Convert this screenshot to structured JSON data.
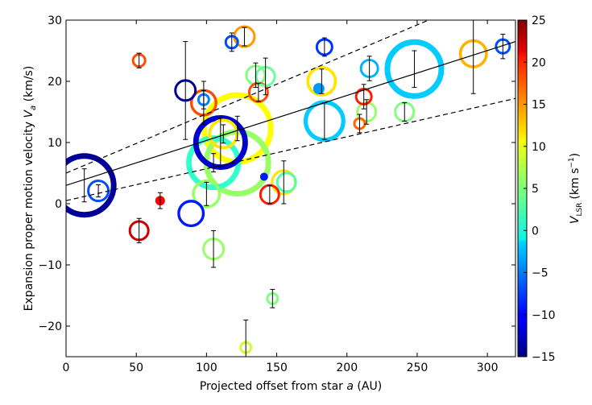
{
  "chart_data": {
    "type": "scatter",
    "xlabel": "Projected offset from star a (AU)",
    "ylabel": "Expansion proper motion velocity V_a (km/s)",
    "xlabel_parts": {
      "main": "Projected offset from star ",
      "italic": "a",
      "unit": " (AU)"
    },
    "ylabel_parts": {
      "main": "Expansion proper motion velocity ",
      "italic": "V",
      "sub": "a",
      "unit": " (km/s)"
    },
    "xlim": [
      0,
      320
    ],
    "ylim": [
      -25,
      30
    ],
    "xticks": [
      0,
      50,
      100,
      150,
      200,
      250,
      300
    ],
    "yticks": [
      -20,
      -10,
      0,
      10,
      20,
      30
    ],
    "colorbar": {
      "label_symbol": "V",
      "label_sub": "LSR",
      "label_unit": "(km s",
      "label_sup": "−1",
      "label_close": ")",
      "range": [
        -15,
        25
      ],
      "ticks": [
        -15,
        -10,
        -5,
        0,
        5,
        10,
        15,
        20,
        25
      ],
      "colormap": "jet"
    },
    "fit_lines": [
      {
        "name": "best-fit",
        "style": "solid",
        "points": [
          [
            0,
            3
          ],
          [
            320,
            26.5
          ]
        ]
      },
      {
        "name": "upper-bound",
        "style": "dashed",
        "points": [
          [
            0,
            5
          ],
          [
            320,
            36
          ]
        ]
      },
      {
        "name": "lower-bound",
        "style": "dashed",
        "points": [
          [
            0,
            0.5
          ],
          [
            320,
            17.2
          ]
        ]
      }
    ],
    "points": [
      {
        "x": 13,
        "y": 3.0,
        "vlsr": -14,
        "size": 4.0,
        "err": 2.7
      },
      {
        "x": 23,
        "y": 2.1,
        "vlsr": -7,
        "size": 1.4,
        "err": 1.0
      },
      {
        "x": 52,
        "y": 23.4,
        "vlsr": 17,
        "size": 0.9,
        "err": 1.2
      },
      {
        "x": 52,
        "y": -4.4,
        "vlsr": 22,
        "size": 1.3,
        "err": 2.0
      },
      {
        "x": 67,
        "y": 0.5,
        "vlsr": 20,
        "size": 0.6,
        "err": 1.3
      },
      {
        "x": 85,
        "y": 18.5,
        "vlsr": -14,
        "size": 1.4,
        "err": 8.0
      },
      {
        "x": 89,
        "y": -1.6,
        "vlsr": -9,
        "size": 1.7,
        "err": null
      },
      {
        "x": 98,
        "y": 16.5,
        "vlsr": 17,
        "size": 1.7,
        "err": 3.5
      },
      {
        "x": 98,
        "y": 17.0,
        "vlsr": -5,
        "size": 0.8,
        "err": 1.5
      },
      {
        "x": 100,
        "y": 1.6,
        "vlsr": 6,
        "size": 1.8,
        "err": 1.9
      },
      {
        "x": 105,
        "y": -7.4,
        "vlsr": 6,
        "size": 1.4,
        "err": 3.0
      },
      {
        "x": 105,
        "y": 6.7,
        "vlsr": 2,
        "size": 3.4,
        "err": 1.5
      },
      {
        "x": 110,
        "y": 10.0,
        "vlsr": -12,
        "size": 3.4,
        "err": 4.0
      },
      {
        "x": 112,
        "y": 11.4,
        "vlsr": 11,
        "size": 1.9,
        "err": 1.5
      },
      {
        "x": 118,
        "y": 26.4,
        "vlsr": -7,
        "size": 0.9,
        "err": 1.5
      },
      {
        "x": 122,
        "y": 12.3,
        "vlsr": 10,
        "size": 4.5,
        "err": 2.0
      },
      {
        "x": 122,
        "y": 6.7,
        "vlsr": 6,
        "size": 4.2,
        "err": null
      },
      {
        "x": 127,
        "y": 27.3,
        "vlsr": 14,
        "size": 1.4,
        "err": 1.5
      },
      {
        "x": 128,
        "y": -23.5,
        "vlsr": 8,
        "size": 0.8,
        "err": 4.5
      },
      {
        "x": 135,
        "y": 21.0,
        "vlsr": 5,
        "size": 1.3,
        "err": 2.0
      },
      {
        "x": 137,
        "y": 18.2,
        "vlsr": 17,
        "size": 1.3,
        "err": 1.5
      },
      {
        "x": 141,
        "y": 4.4,
        "vlsr": -9,
        "size": 0.5,
        "err": null
      },
      {
        "x": 142,
        "y": 20.8,
        "vlsr": 4,
        "size": 1.3,
        "err": 3.0
      },
      {
        "x": 145,
        "y": 1.5,
        "vlsr": 19,
        "size": 1.3,
        "err": 1.5
      },
      {
        "x": 147,
        "y": -15.5,
        "vlsr": 5,
        "size": 0.8,
        "err": 1.5
      },
      {
        "x": 155,
        "y": 3.5,
        "vlsr": 11,
        "size": 1.6,
        "err": 3.5
      },
      {
        "x": 157,
        "y": 3.5,
        "vlsr": 3,
        "size": 1.3,
        "err": null
      },
      {
        "x": 180,
        "y": 18.8,
        "vlsr": -4,
        "size": 0.7,
        "err": null
      },
      {
        "x": 182,
        "y": 20.0,
        "vlsr": 11,
        "size": 1.9,
        "err": 2.0
      },
      {
        "x": 184,
        "y": 13.5,
        "vlsr": -2,
        "size": 2.6,
        "err": 3.0
      },
      {
        "x": 184,
        "y": 25.6,
        "vlsr": -8,
        "size": 1.1,
        "err": 1.5
      },
      {
        "x": 209,
        "y": 13.1,
        "vlsr": 16,
        "size": 0.8,
        "err": 1.5
      },
      {
        "x": 212,
        "y": 17.5,
        "vlsr": 19,
        "size": 1.1,
        "err": 2.0
      },
      {
        "x": 214,
        "y": 15.0,
        "vlsr": 6,
        "size": 1.3,
        "err": 2.0
      },
      {
        "x": 216,
        "y": 22.1,
        "vlsr": -3,
        "size": 1.2,
        "err": 2.0
      },
      {
        "x": 241,
        "y": 15.0,
        "vlsr": 5,
        "size": 1.3,
        "err": 1.5
      },
      {
        "x": 248,
        "y": 22.0,
        "vlsr": -2,
        "size": 3.7,
        "err": 3.0
      },
      {
        "x": 290,
        "y": 24.5,
        "vlsr": 13,
        "size": 1.8,
        "err": 6.5
      },
      {
        "x": 311,
        "y": 25.7,
        "vlsr": -7,
        "size": 1.0,
        "err": 2.0
      }
    ]
  }
}
